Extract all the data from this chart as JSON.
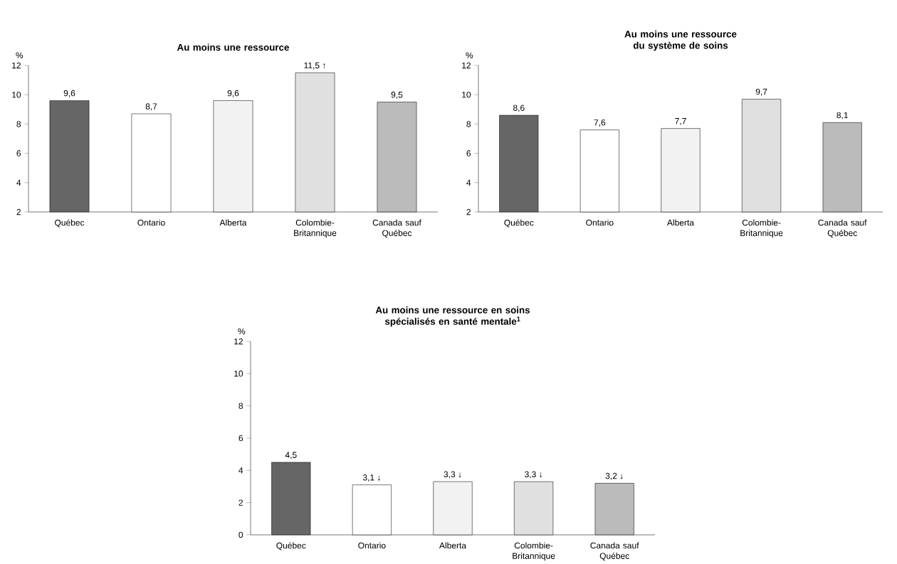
{
  "chart_data": [
    {
      "type": "bar",
      "title": "Au moins une ressource",
      "ylabel": "%",
      "categories": [
        "Québec",
        "Ontario",
        "Alberta",
        "Colombie-Britannique",
        "Canada sauf Québec"
      ],
      "values": [
        9.6,
        8.7,
        9.6,
        11.5,
        9.5
      ],
      "colors": [
        "#666666",
        "#ffffff",
        "#f2f2f2",
        "#e0e0e0",
        "#bbbbbb"
      ],
      "value_labels": [
        "9,6",
        "8,7",
        "9,6",
        "11,5 ↑",
        "9,5"
      ],
      "ylim": [
        2,
        12
      ],
      "yticks": [
        2,
        4,
        6,
        8,
        10,
        12
      ]
    },
    {
      "type": "bar",
      "title": "Au moins une ressource du système de soins",
      "ylabel": "%",
      "categories": [
        "Québec",
        "Ontario",
        "Alberta",
        "Colombie-Britannique",
        "Canada sauf Québec"
      ],
      "values": [
        8.6,
        7.6,
        7.7,
        9.7,
        8.1
      ],
      "colors": [
        "#666666",
        "#ffffff",
        "#f2f2f2",
        "#e0e0e0",
        "#bbbbbb"
      ],
      "value_labels": [
        "8,6",
        "7,6",
        "7,7",
        "9,7",
        "8,1"
      ],
      "ylim": [
        2,
        12
      ],
      "yticks": [
        2,
        4,
        6,
        8,
        10,
        12
      ]
    },
    {
      "type": "bar",
      "title": "Au moins une ressource en soins spécialisés en santé mentale$^{1}$",
      "ylabel": "%",
      "categories": [
        "Québec",
        "Ontario",
        "Alberta",
        "Colombie-Britannique",
        "Canada sauf Québec"
      ],
      "values": [
        4.5,
        3.1,
        3.3,
        3.3,
        3.2
      ],
      "colors": [
        "#666666",
        "#ffffff",
        "#f2f2f2",
        "#e0e0e0",
        "#bbbbbb"
      ],
      "value_labels": [
        "4,5",
        "3,1 ↓",
        "3,3 ↓",
        "3,3 ↓",
        "3,2 ↓"
      ],
      "ylim": [
        0,
        12
      ],
      "yticks": [
        0,
        2,
        4,
        6,
        8,
        10,
        12
      ]
    }
  ]
}
